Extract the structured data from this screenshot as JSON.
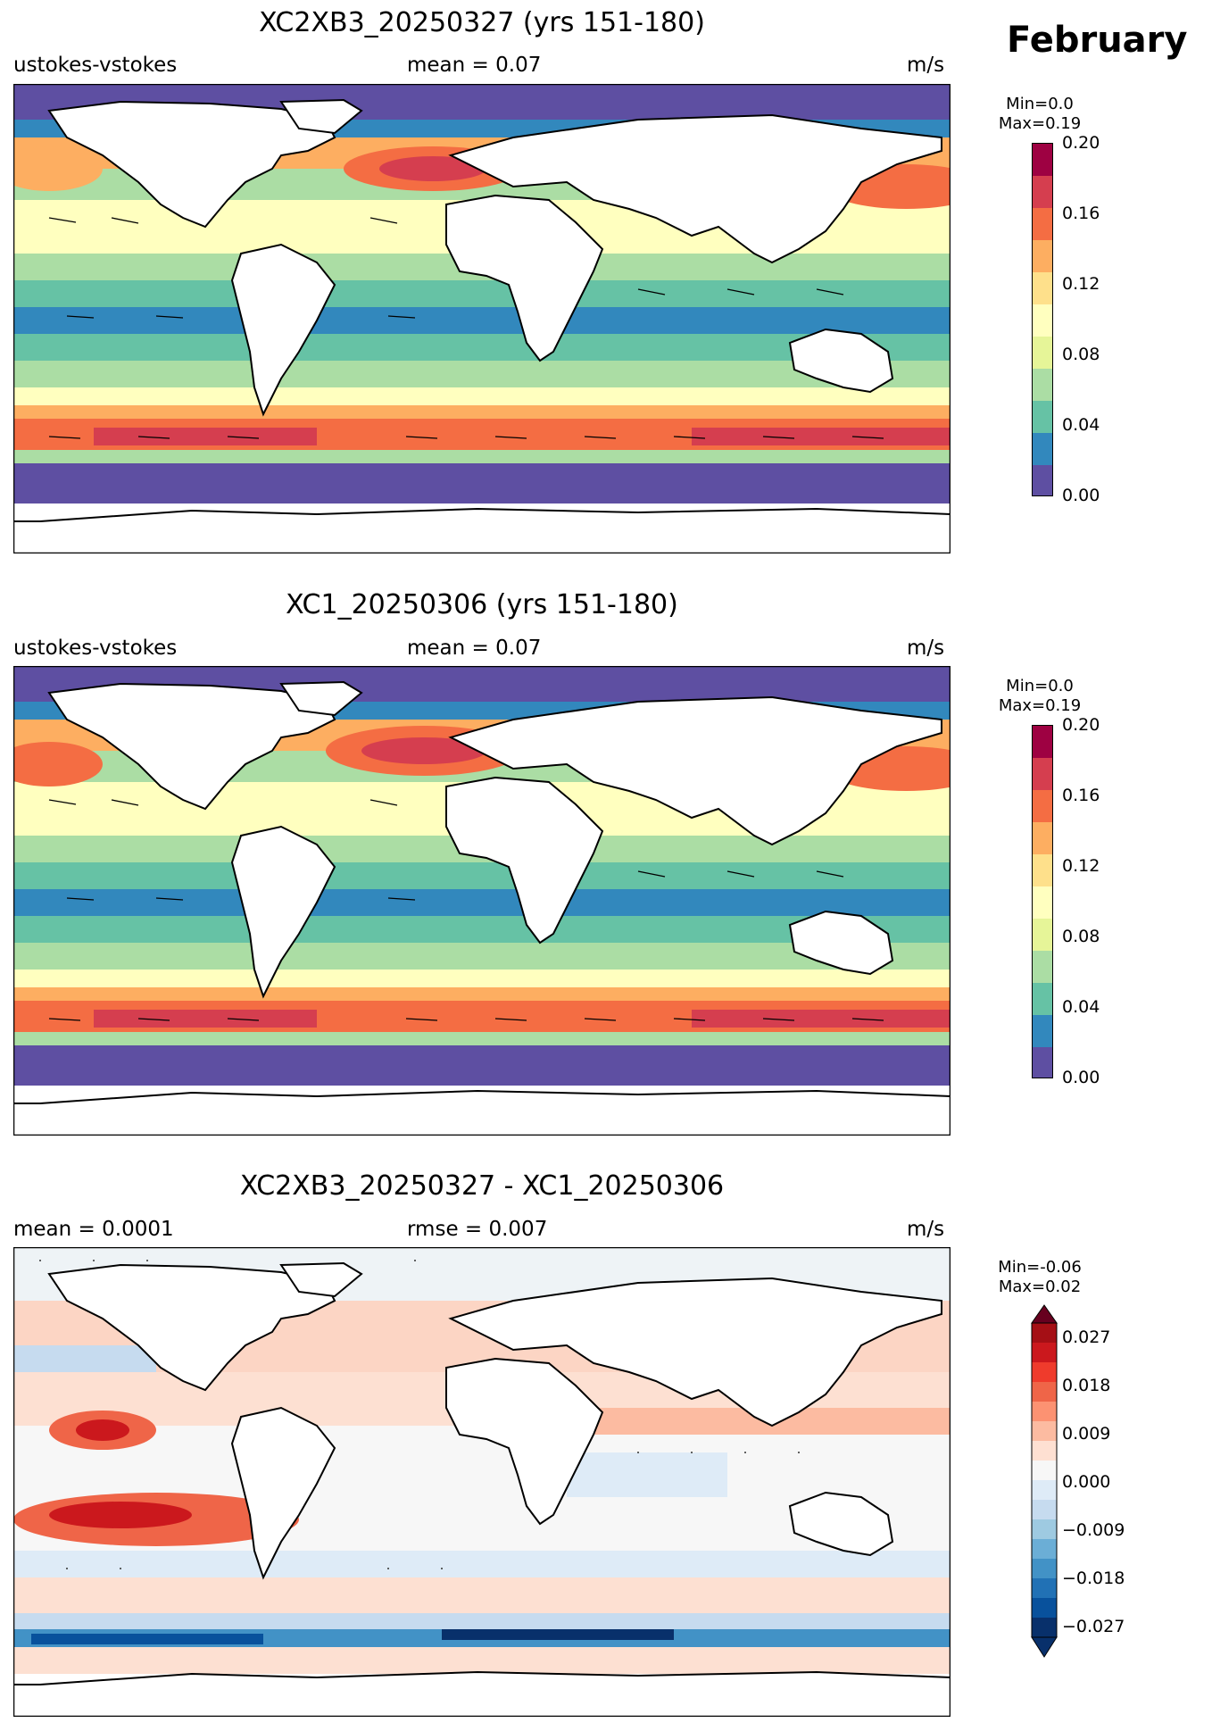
{
  "month": "February",
  "units": "m/s",
  "panels": [
    {
      "title": "XC2XB3_20250327 (yrs 151-180)",
      "left_label": "ustokes-vstokes",
      "center_label": "mean = 0.07",
      "right_label": "m/s",
      "min_text": "Min=0.0",
      "max_text": "Max=0.19",
      "colorbar_ticks": [
        "0.20",
        "0.16",
        "0.12",
        "0.08",
        "0.04",
        "0.00"
      ],
      "colorbar_colors": [
        "#9e0142",
        "#d53e4f",
        "#f46d43",
        "#fdae61",
        "#fee08b",
        "#ffffbf",
        "#e6f598",
        "#abdda4",
        "#66c2a5",
        "#3288bd",
        "#5e4fa2"
      ]
    },
    {
      "title": "XC1_20250306 (yrs 151-180)",
      "left_label": "ustokes-vstokes",
      "center_label": "mean = 0.07",
      "right_label": "m/s",
      "min_text": "Min=0.0",
      "max_text": "Max=0.19",
      "colorbar_ticks": [
        "0.20",
        "0.16",
        "0.12",
        "0.08",
        "0.04",
        "0.00"
      ],
      "colorbar_colors": [
        "#9e0142",
        "#d53e4f",
        "#f46d43",
        "#fdae61",
        "#fee08b",
        "#ffffbf",
        "#e6f598",
        "#abdda4",
        "#66c2a5",
        "#3288bd",
        "#5e4fa2"
      ]
    },
    {
      "title": "XC2XB3_20250327 - XC1_20250306",
      "left_label": "mean = 0.0001",
      "center_label": "rmse = 0.007",
      "right_label": "m/s",
      "min_text": "Min=-0.06",
      "max_text": "Max=0.02",
      "colorbar_ticks": [
        "0.027",
        "0.018",
        "0.009",
        "0.000",
        "−0.009",
        "−0.018",
        "−0.027"
      ],
      "colorbar_colors": [
        "#67001f",
        "#a50f15",
        "#cb181d",
        "#ef6548",
        "#fc9272",
        "#fcbba1",
        "#fee0d2",
        "#f7f7f7",
        "#deebf7",
        "#c6dbef",
        "#9ecae1",
        "#6baed6",
        "#4292c6",
        "#2171b5",
        "#08519c",
        "#08306b"
      ]
    }
  ]
}
